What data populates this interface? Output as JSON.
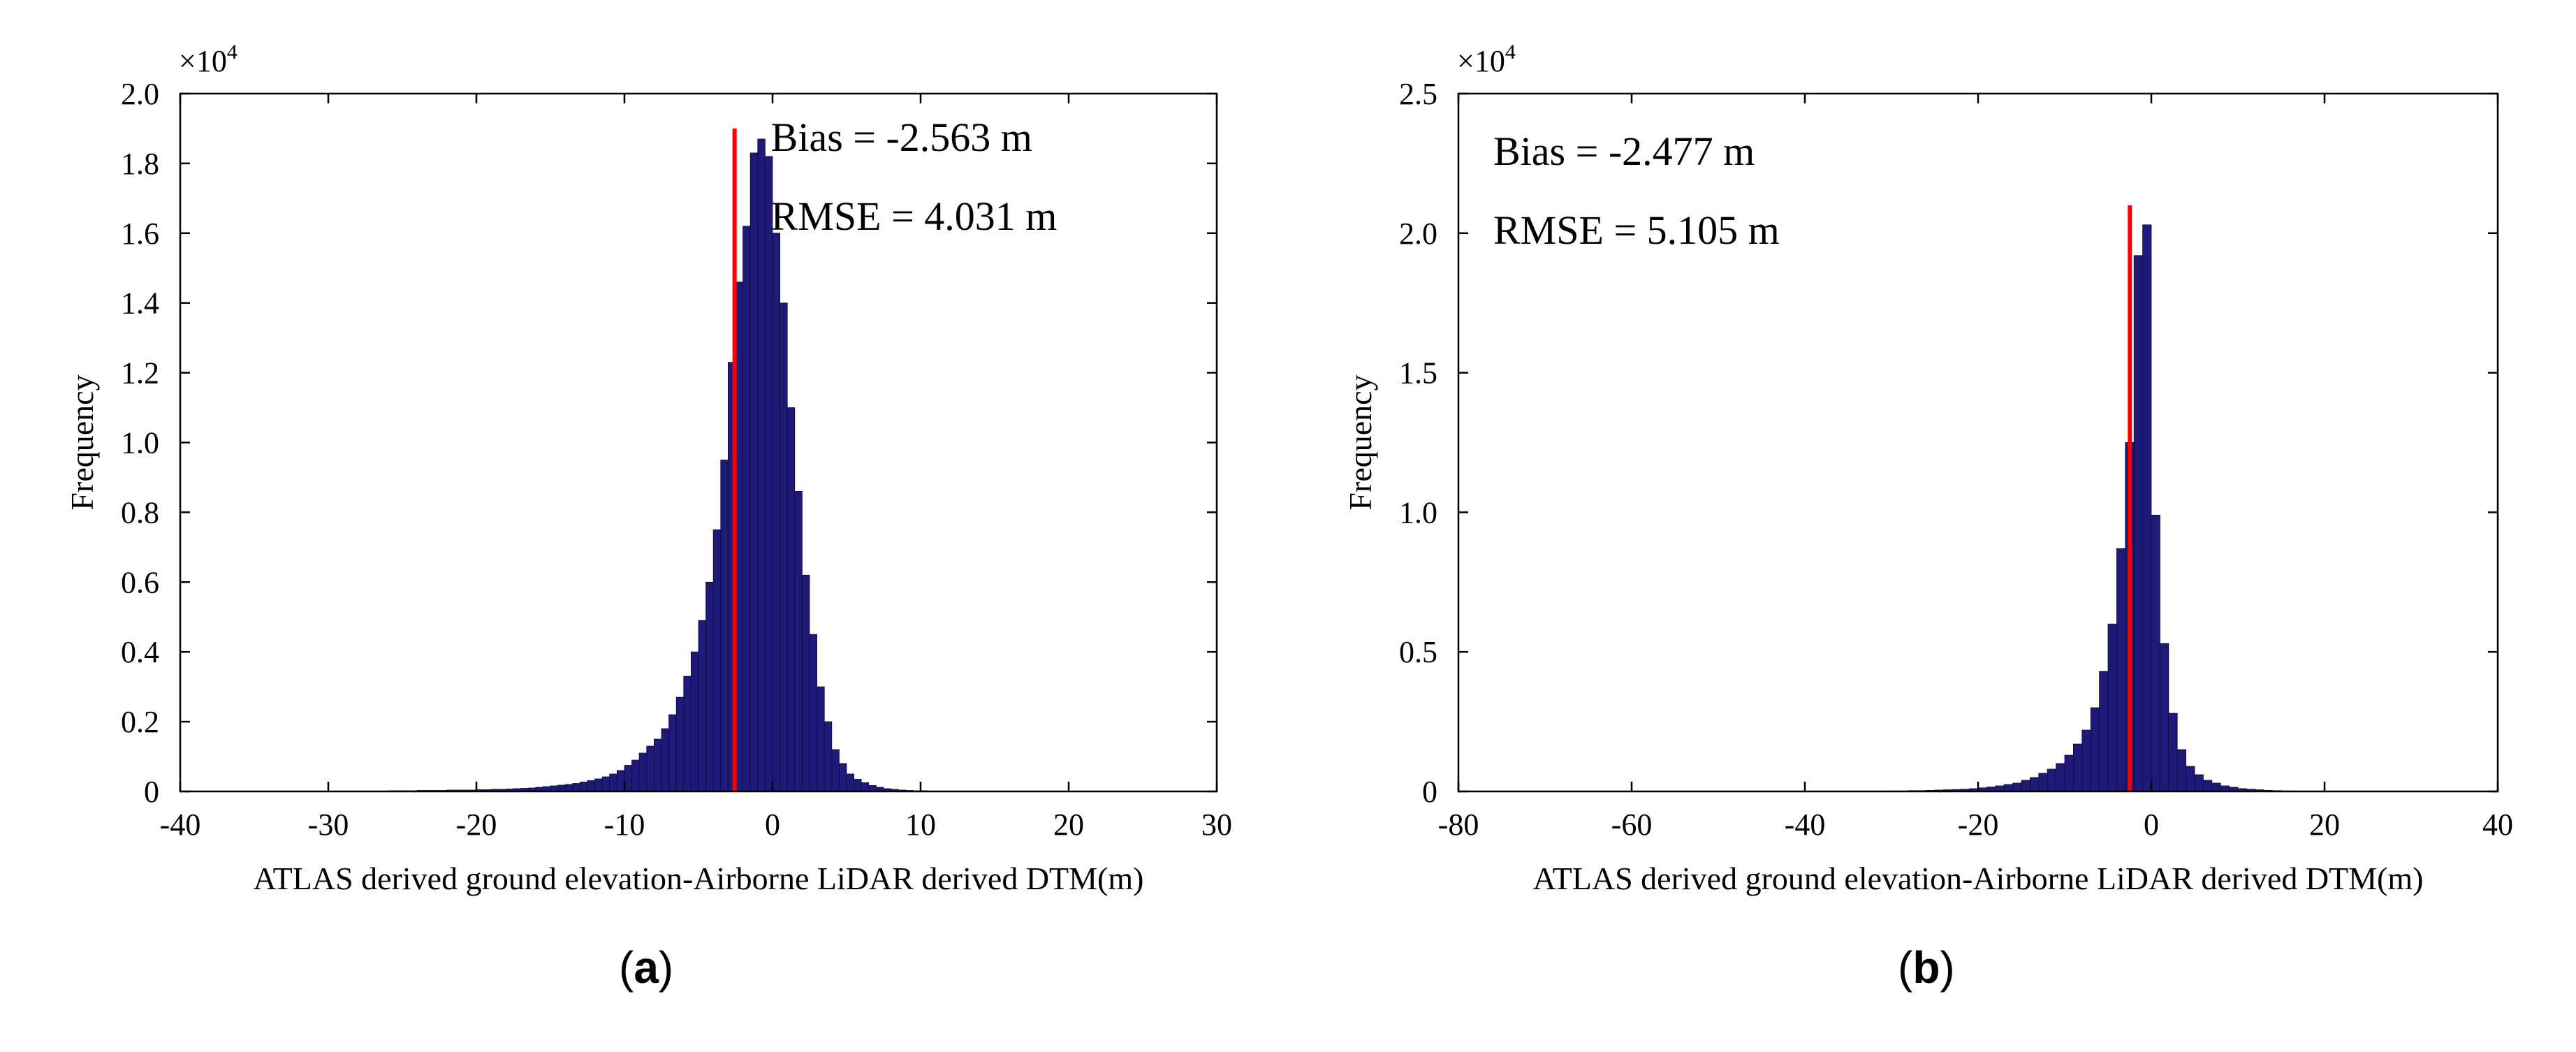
{
  "chart_data": [
    {
      "type": "bar",
      "panel": "a",
      "panel_label": "a",
      "xlabel": "ATLAS derived ground elevation-Airborne LiDAR derived DTM(m)",
      "ylabel": "Frequency",
      "y_multiplier": "×10",
      "y_multiplier_exp": "4",
      "xlim": [
        -40,
        30
      ],
      "ylim": [
        0,
        2.0
      ],
      "xticks": [
        -40,
        -30,
        -20,
        -10,
        0,
        10,
        20,
        30
      ],
      "xtick_labels": [
        "-40",
        "-30",
        "-20",
        "-10",
        "0",
        "10",
        "20",
        "30"
      ],
      "yticks": [
        0,
        0.2,
        0.4,
        0.6,
        0.8,
        1.0,
        1.2,
        1.4,
        1.6,
        1.8,
        2.0
      ],
      "ytick_labels": [
        "0",
        "0.2",
        "0.4",
        "0.6",
        "0.8",
        "1.0",
        "1.2",
        "1.4",
        "1.6",
        "1.8",
        "2.0"
      ],
      "bias_line": {
        "x": -2.563,
        "y_top": 1.9
      },
      "annotations": [
        "Bias = -2.563 m",
        "RMSE = 4.031 m"
      ],
      "bin_width": 0.5,
      "bins_start": -35,
      "values": [
        0,
        0,
        0,
        0,
        0,
        0,
        0,
        0,
        0,
        0,
        0,
        0,
        0,
        0,
        0,
        0,
        0,
        0,
        0.002,
        0.002,
        0.002,
        0.002,
        0.003,
        0.003,
        0.003,
        0.003,
        0.004,
        0.004,
        0.004,
        0.004,
        0.005,
        0.005,
        0.006,
        0.006,
        0.007,
        0.008,
        0.009,
        0.01,
        0.012,
        0.014,
        0.016,
        0.018,
        0.02,
        0.023,
        0.027,
        0.031,
        0.036,
        0.042,
        0.05,
        0.06,
        0.075,
        0.09,
        0.11,
        0.13,
        0.15,
        0.18,
        0.22,
        0.27,
        0.33,
        0.4,
        0.49,
        0.6,
        0.75,
        0.95,
        1.23,
        1.46,
        1.62,
        1.83,
        1.87,
        1.82,
        1.6,
        1.4,
        1.1,
        0.86,
        0.62,
        0.45,
        0.3,
        0.2,
        0.12,
        0.08,
        0.05,
        0.035,
        0.025,
        0.017,
        0.012,
        0.008,
        0.006,
        0.004,
        0.003,
        0.002,
        0.002,
        0.001,
        0.001,
        0.001,
        0.001,
        0.001,
        0.001,
        0.001,
        0.001,
        0.001,
        0.001,
        0.001,
        0.001,
        0.001,
        0.001,
        0.001,
        0.001,
        0.001,
        0.001,
        0.001,
        0.001,
        0.001,
        0,
        0,
        0,
        0,
        0,
        0,
        0,
        0,
        0,
        0,
        0,
        0,
        0,
        0
      ]
    },
    {
      "type": "bar",
      "panel": "b",
      "panel_label": "b",
      "xlabel": "ATLAS derived ground elevation-Airborne LiDAR derived DTM(m)",
      "ylabel": "Frequency",
      "y_multiplier": "×10",
      "y_multiplier_exp": "4",
      "xlim": [
        -80,
        40
      ],
      "ylim": [
        0,
        2.5
      ],
      "xticks": [
        -80,
        -60,
        -40,
        -20,
        0,
        20,
        40
      ],
      "xtick_labels": [
        "-80",
        "-60",
        "-40",
        "-20",
        "0",
        "20",
        "40"
      ],
      "yticks": [
        0,
        0.5,
        1.0,
        1.5,
        2.0,
        2.5
      ],
      "ytick_labels": [
        "0",
        "0.5",
        "1.0",
        "1.5",
        "2.0",
        "2.5"
      ],
      "bias_line": {
        "x": -2.477,
        "y_top": 2.1
      },
      "annotations": [
        "Bias = -2.477 m",
        "RMSE = 5.105 m"
      ],
      "bin_width": 1,
      "bins_start": -36,
      "values": [
        0.001,
        0.001,
        0.001,
        0.001,
        0.001,
        0.002,
        0.002,
        0.002,
        0.003,
        0.003,
        0.004,
        0.005,
        0.006,
        0.007,
        0.008,
        0.01,
        0.013,
        0.016,
        0.02,
        0.025,
        0.03,
        0.04,
        0.05,
        0.065,
        0.08,
        0.1,
        0.13,
        0.17,
        0.22,
        0.3,
        0.43,
        0.6,
        0.87,
        1.25,
        1.92,
        2.03,
        0.99,
        0.53,
        0.28,
        0.15,
        0.09,
        0.06,
        0.04,
        0.03,
        0.02,
        0.015,
        0.01,
        0.008,
        0.006,
        0.004,
        0.003,
        0.002,
        0.002,
        0.001,
        0.001,
        0.001,
        0.001,
        0.001,
        0.001,
        0.001,
        0.001,
        0.001,
        0.001,
        0.001,
        0.001,
        0.001,
        0.001,
        0.001,
        0.001,
        0.001
      ]
    }
  ],
  "colors": {
    "bar": "#1f1a78",
    "bias_line": "#ff0000",
    "axis": "#000000"
  }
}
